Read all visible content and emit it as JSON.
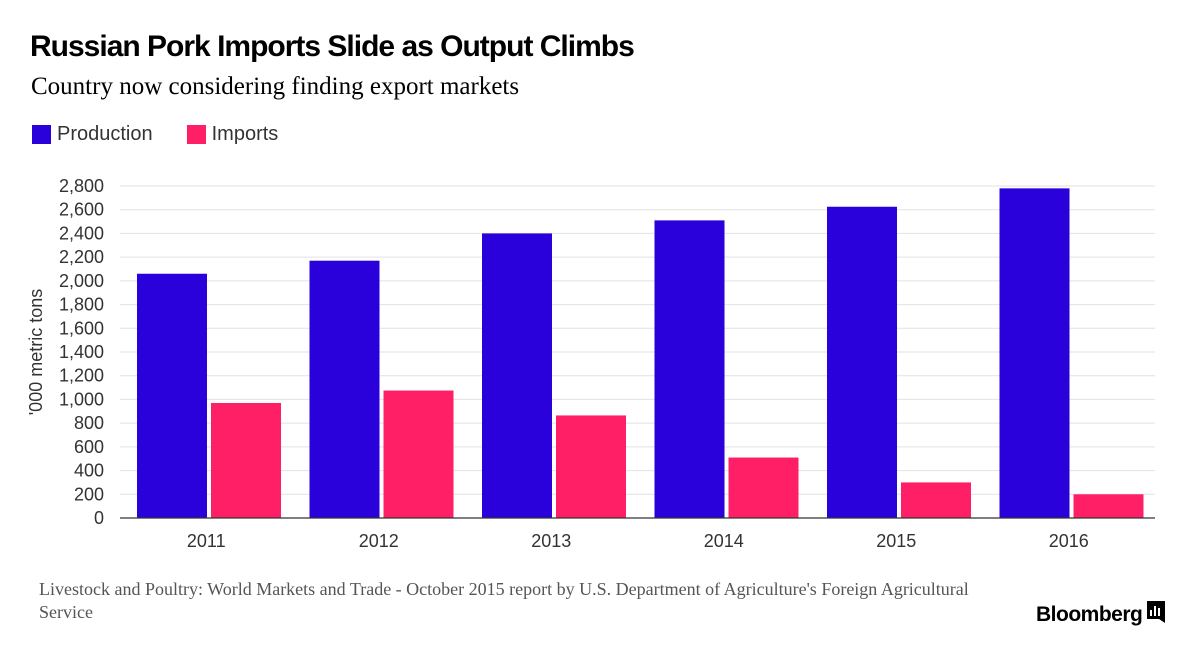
{
  "title": "Russian Pork Imports Slide as Output Climbs",
  "subtitle": "Country now considering finding export markets",
  "source": "Livestock and Poultry: World Markets and Trade - October 2015 report by U.S. Department of Agriculture's Foreign Agricultural Service",
  "brand": "Bloomberg",
  "brand_icon": "bloomberg-terminal-icon",
  "chart_data": {
    "type": "bar",
    "categories": [
      "2011",
      "2012",
      "2013",
      "2014",
      "2015",
      "2016"
    ],
    "series": [
      {
        "name": "Production",
        "color": "#2a00db",
        "values": [
          2060,
          2170,
          2400,
          2510,
          2625,
          2780
        ]
      },
      {
        "name": "Imports",
        "color": "#ff1f67",
        "values": [
          970,
          1075,
          865,
          510,
          300,
          200
        ]
      }
    ],
    "ylabel": "'000 metric tons",
    "ylim": [
      0,
      2800
    ],
    "yticks": [
      0,
      200,
      400,
      600,
      800,
      1000,
      1200,
      1400,
      1600,
      1800,
      2000,
      2200,
      2400,
      2600,
      2800
    ],
    "ytick_labels": [
      "0",
      "200",
      "400",
      "600",
      "800",
      "1,000",
      "1,200",
      "1,400",
      "1,600",
      "1,800",
      "2,000",
      "2,200",
      "2,400",
      "2,600",
      "2,800"
    ],
    "grid": true,
    "legend": "top-left"
  }
}
